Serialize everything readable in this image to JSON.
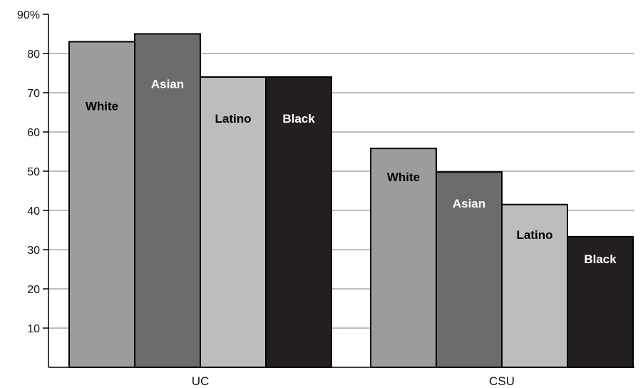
{
  "chart_data": {
    "type": "bar",
    "categories": [
      "UC",
      "CSU"
    ],
    "series": [
      {
        "name": "White",
        "values": [
          83,
          55.8
        ],
        "color": "#9c9c9c",
        "label_color": "#000000"
      },
      {
        "name": "Asian",
        "values": [
          85,
          49.8
        ],
        "color": "#6b6b6b",
        "label_color": "#ffffff"
      },
      {
        "name": "Latino",
        "values": [
          74,
          41.5
        ],
        "color": "#bdbdbd",
        "label_color": "#000000"
      },
      {
        "name": "Black",
        "values": [
          74,
          33.3
        ],
        "color": "#231f20",
        "label_color": "#ffffff"
      }
    ],
    "y_ticks": [
      "10",
      "20",
      "30",
      "40",
      "50",
      "60",
      "70",
      "80",
      "90%"
    ],
    "ylim": [
      0,
      90
    ],
    "grid": true,
    "title": "",
    "xlabel": "",
    "ylabel": ""
  }
}
